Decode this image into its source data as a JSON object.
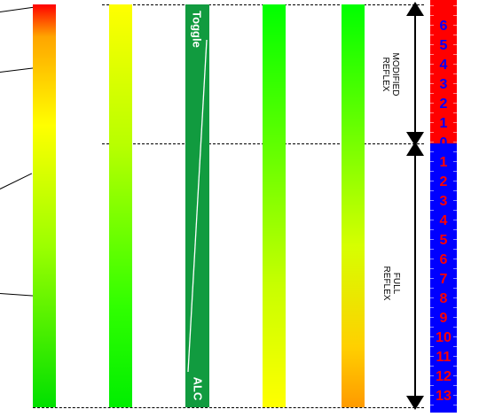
{
  "strip_labels": {
    "top": "Toggle",
    "bottom": "ALC"
  },
  "side_labels": {
    "modified": [
      "MODIFIED",
      "REFLEX"
    ],
    "full": [
      "FULL",
      "REFLEX"
    ]
  },
  "scale": {
    "modified": [
      "6",
      "5",
      "4",
      "3",
      "2",
      "1",
      "0"
    ],
    "full": [
      "1",
      "2",
      "3",
      "4",
      "5",
      "6",
      "7",
      "8",
      "9",
      "10",
      "11",
      "12",
      "13"
    ]
  },
  "colors": {
    "scale_top": "#ff0000",
    "scale_bottom": "#0000ff",
    "strip": "#119b3f"
  }
}
